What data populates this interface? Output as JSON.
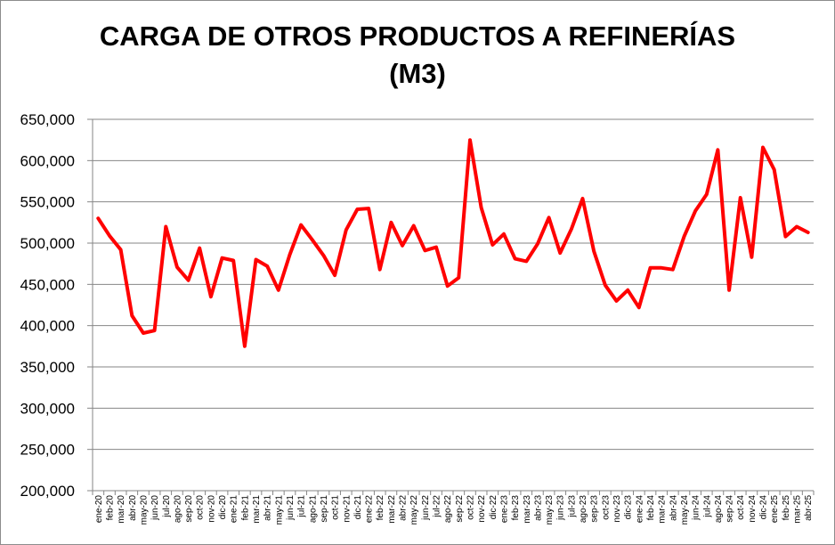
{
  "chart_data": {
    "type": "line",
    "title": "CARGA DE OTROS PRODUCTOS A REFINERÍAS",
    "subtitle": "(M3)",
    "xlabel": "",
    "ylabel": "",
    "ylim": [
      200000,
      650000
    ],
    "yticks": [
      "200,000",
      "250,000",
      "300,000",
      "350,000",
      "400,000",
      "450,000",
      "500,000",
      "550,000",
      "600,000",
      "650,000"
    ],
    "grid": true,
    "legend": "none",
    "series_color": "#ff0000",
    "categories": [
      "ene-20",
      "feb-20",
      "mar-20",
      "abr-20",
      "may-20",
      "jun-20",
      "jul-20",
      "ago-20",
      "sep-20",
      "oct-20",
      "nov-20",
      "dic-20",
      "ene-21",
      "feb-21",
      "mar-21",
      "abr-21",
      "may-21",
      "jun-21",
      "jul-21",
      "ago-21",
      "sep-21",
      "oct-21",
      "nov-21",
      "dic-21",
      "ene-22",
      "feb-22",
      "mar-22",
      "abr-22",
      "may-22",
      "jun-22",
      "jul-22",
      "ago-22",
      "sep-22",
      "oct-22",
      "nov-22",
      "dic-22",
      "ene-23",
      "feb-23",
      "mar-23",
      "abr-23",
      "may-23",
      "jun-23",
      "jul-23",
      "ago-23",
      "sep-23",
      "oct-23",
      "nov-23",
      "dic-23",
      "ene-24",
      "feb-24",
      "mar-24",
      "abr-24",
      "may-24",
      "jun-24",
      "jul-24",
      "ago-24",
      "sep-24",
      "oct-24",
      "nov-24",
      "dic-24",
      "ene-25",
      "feb-25",
      "mar-25",
      "abr-25"
    ],
    "values": [
      530000,
      509000,
      492000,
      412000,
      391000,
      394000,
      520000,
      471000,
      455000,
      494000,
      435000,
      482000,
      479000,
      375000,
      480000,
      472000,
      443000,
      486000,
      522000,
      504000,
      485000,
      461000,
      516000,
      541000,
      542000,
      468000,
      525000,
      497000,
      521000,
      491000,
      495000,
      448000,
      458000,
      625000,
      543000,
      498000,
      511000,
      481000,
      478000,
      499000,
      531000,
      488000,
      517000,
      554000,
      490000,
      449000,
      430000,
      443000,
      422000,
      470000,
      470000,
      468000,
      508000,
      539000,
      559000,
      613000,
      443000,
      555000,
      483000,
      616000,
      589000,
      508000,
      520000,
      513000
    ]
  }
}
